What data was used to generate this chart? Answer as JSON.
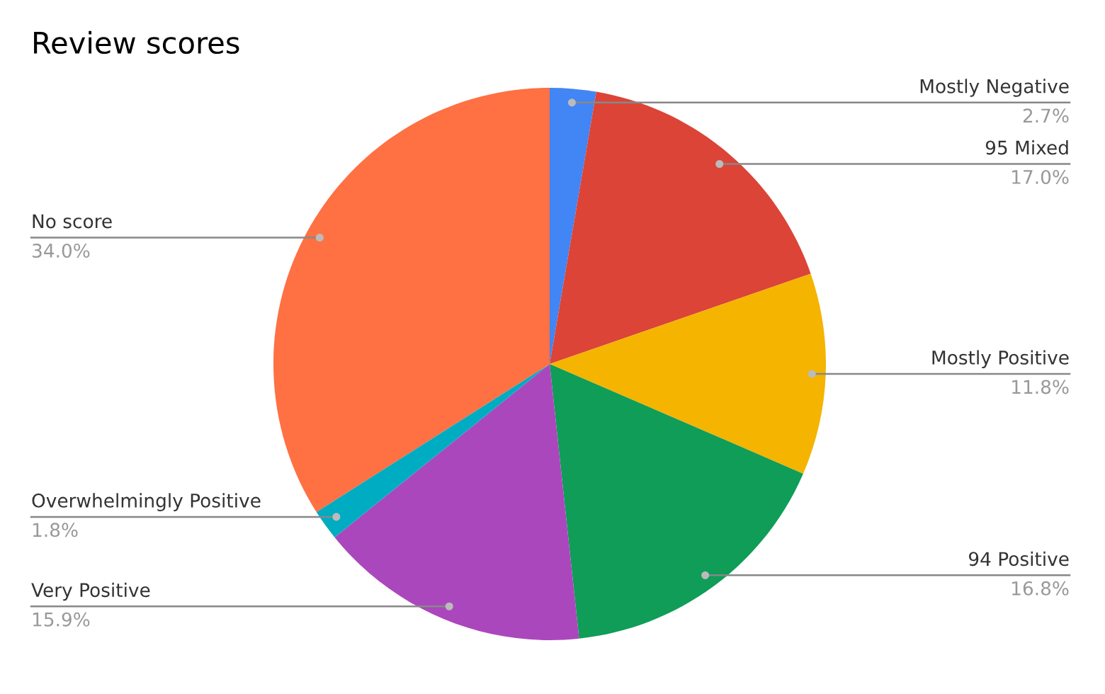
{
  "chart_data": {
    "type": "pie",
    "title": "Review scores",
    "categories": [
      "Mostly Negative",
      "95 Mixed",
      "Mostly Positive",
      "94 Positive",
      "Very Positive",
      "Overwhelmingly Positive",
      "No score"
    ],
    "values": [
      2.7,
      17.0,
      11.8,
      16.8,
      15.9,
      1.8,
      34.0
    ],
    "value_labels": [
      "2.7%",
      "17.0%",
      "11.8%",
      "16.8%",
      "15.9%",
      "1.8%",
      "34.0%"
    ],
    "colors": [
      "#4285f4",
      "#db4437",
      "#f4b400",
      "#0f9d58",
      "#ab47bc",
      "#00acc1",
      "#ff7043"
    ],
    "legend": false
  }
}
